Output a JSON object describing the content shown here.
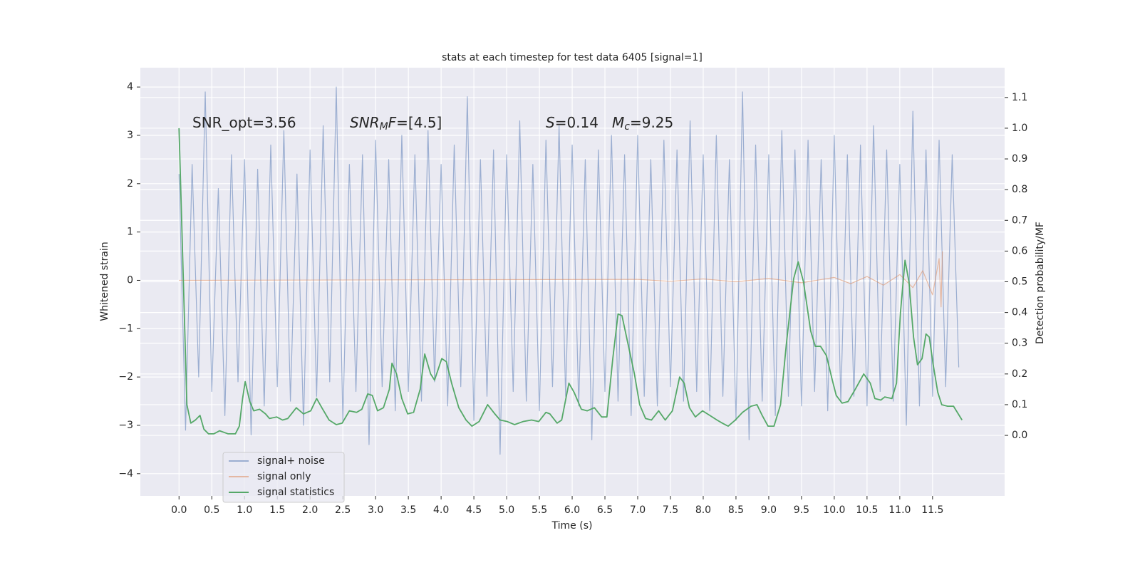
{
  "chart_data": {
    "type": "line",
    "title": "stats at each timestep for test data 6405 [signal=1]",
    "xlabel": "Time (s)",
    "ylabel": "Whitened strain",
    "y2label": "Detection probability/MF",
    "grid": true,
    "legend": "lower left",
    "xlim": [
      -0.59,
      12.6
    ],
    "ylim": [
      -4.46,
      4.4
    ],
    "y2lim": [
      -0.197,
      1.197
    ],
    "xticks": [
      {
        "value": 0,
        "label": "0.0"
      },
      0.5,
      {
        "value": 1,
        "label": "1.0"
      },
      1.5,
      {
        "value": 2,
        "label": "2.0"
      },
      2.5,
      {
        "value": 3,
        "label": "3.0"
      },
      3.5,
      {
        "value": 4,
        "label": "4.0"
      },
      4.5,
      {
        "value": 5,
        "label": "5.0"
      },
      5.5,
      {
        "value": 6,
        "label": "6.0"
      },
      6.5,
      {
        "value": 7,
        "label": "7.0"
      },
      7.5,
      {
        "value": 8,
        "label": "8.0"
      },
      8.5,
      {
        "value": 9,
        "label": "9.0"
      },
      9.5,
      {
        "value": 10,
        "label": "10.0"
      },
      10.5,
      {
        "value": 11,
        "label": "11.0"
      },
      11.5
    ],
    "yticks": [
      {
        "value": -4,
        "label": "−4"
      },
      {
        "value": -3,
        "label": "−3"
      },
      {
        "value": -2,
        "label": "−2"
      },
      {
        "value": -1,
        "label": "−1"
      },
      0,
      1,
      2,
      3,
      4
    ],
    "y2ticks": [
      {
        "value": 0,
        "label": "0.0"
      },
      0.1,
      0.2,
      0.3,
      0.4,
      0.5,
      0.6,
      0.7,
      0.8,
      0.9,
      {
        "value": 1,
        "label": "1.0"
      },
      1.1
    ],
    "annotations": [
      [
        {
          "text": "SNR_opt=3.56",
          "style": "normal"
        }
      ],
      [
        {
          "text": "SNR",
          "style": "italic"
        },
        {
          "text": "M",
          "style": "italic-sub"
        },
        {
          "text": "F",
          "style": "italic"
        },
        {
          "text": "=[4.5]",
          "style": "normal"
        }
      ],
      [
        {
          "text": "S",
          "style": "italic"
        },
        {
          "text": "=0.14",
          "style": "normal"
        }
      ],
      [
        {
          "text": "M",
          "style": "italic"
        },
        {
          "text": "c",
          "style": "italic-sub"
        },
        {
          "text": "=9.25",
          "style": "normal"
        }
      ]
    ],
    "series": [
      {
        "name": "signal+ noise",
        "color": "#4c72b0",
        "opacity": 0.5,
        "axis": "y",
        "x": [
          0,
          0.1,
          0.2,
          0.3,
          0.4,
          0.5,
          0.6,
          0.7,
          0.8,
          0.9,
          1,
          1.1,
          1.2,
          1.3,
          1.4,
          1.5,
          1.6,
          1.7,
          1.8,
          1.9,
          2,
          2.1,
          2.2,
          2.3,
          2.4,
          2.5,
          2.6,
          2.7,
          2.8,
          2.9,
          3,
          3.1,
          3.2,
          3.3,
          3.4,
          3.5,
          3.6,
          3.7,
          3.8,
          3.9,
          4,
          4.1,
          4.2,
          4.3,
          4.4,
          4.5,
          4.6,
          4.7,
          4.8,
          4.9,
          5,
          5.1,
          5.2,
          5.3,
          5.4,
          5.5,
          5.6,
          5.7,
          5.8,
          5.9,
          6,
          6.1,
          6.2,
          6.3,
          6.4,
          6.5,
          6.6,
          6.7,
          6.8,
          6.9,
          7,
          7.1,
          7.2,
          7.3,
          7.4,
          7.5,
          7.6,
          7.7,
          7.8,
          7.9,
          8,
          8.1,
          8.2,
          8.3,
          8.4,
          8.5,
          8.6,
          8.7,
          8.8,
          8.9,
          9,
          9.1,
          9.2,
          9.3,
          9.4,
          9.5,
          9.6,
          9.7,
          9.8,
          9.9,
          10,
          10.1,
          10.2,
          10.3,
          10.4,
          10.5,
          10.6,
          10.7,
          10.8,
          10.9,
          11,
          11.1,
          11.2,
          11.3,
          11.4,
          11.5,
          11.6,
          11.7,
          11.8,
          11.9
        ],
        "values": [
          2.2,
          -3.1,
          2.4,
          -2.0,
          3.9,
          -2.3,
          1.9,
          -2.8,
          2.6,
          -2.1,
          2.5,
          -3.2,
          2.3,
          -2.6,
          2.8,
          -2.2,
          3.1,
          -2.5,
          2.2,
          -3.0,
          2.7,
          -2.4,
          3.2,
          -2.1,
          4.0,
          -2.9,
          2.4,
          -2.3,
          2.6,
          -3.4,
          2.9,
          -2.2,
          2.5,
          -2.7,
          3.0,
          -2.3,
          2.6,
          -2.5,
          3.1,
          -2.1,
          2.4,
          -2.6,
          2.8,
          -2.2,
          3.8,
          -2.9,
          2.5,
          -2.4,
          2.7,
          -3.6,
          2.6,
          -2.3,
          3.3,
          -2.5,
          2.4,
          -2.7,
          2.9,
          -2.2,
          3.2,
          -2.4,
          2.8,
          -2.6,
          2.5,
          -3.3,
          2.7,
          -2.3,
          3.0,
          -2.5,
          2.6,
          -2.8,
          3.0,
          -2.4,
          2.5,
          -2.6,
          2.9,
          -2.2,
          2.7,
          -2.5,
          3.3,
          -2.3,
          2.6,
          -2.7,
          3.0,
          -2.4,
          2.5,
          -2.9,
          3.9,
          -3.3,
          2.8,
          -2.5,
          2.6,
          -2.8,
          3.1,
          -2.4,
          2.7,
          -2.6,
          2.9,
          -2.3,
          2.5,
          -2.7,
          3.0,
          -2.5,
          2.6,
          -2.4,
          2.8,
          -2.6,
          3.2,
          -2.3,
          2.7,
          -2.5,
          2.4,
          -3.0,
          3.5,
          -2.6,
          2.7,
          -2.4,
          2.9,
          -2.2,
          2.6,
          -1.8
        ]
      },
      {
        "name": "signal only",
        "color": "#dd8452",
        "opacity": 0.5,
        "axis": "y",
        "x": [
          0,
          7,
          7.5,
          8,
          8.5,
          9,
          9.5,
          10,
          10.25,
          10.5,
          10.75,
          11,
          11.2,
          11.35,
          11.5,
          11.6,
          11.63,
          11.65
        ],
        "values": [
          0,
          0.02,
          -0.02,
          0.03,
          -0.03,
          0.04,
          -0.05,
          0.06,
          -0.07,
          0.08,
          -0.1,
          0.12,
          -0.15,
          0.2,
          -0.3,
          0.45,
          -0.55,
          0.6
        ]
      },
      {
        "name": "signal statistics",
        "color": "#55a868",
        "opacity": 1,
        "axis": "y2",
        "x": [
          0,
          0.12,
          0.18,
          0.25,
          0.32,
          0.38,
          0.45,
          0.53,
          0.62,
          0.75,
          0.86,
          0.92,
          0.97,
          1.01,
          1.08,
          1.14,
          1.23,
          1.32,
          1.38,
          1.49,
          1.58,
          1.66,
          1.79,
          1.9,
          2.01,
          2.1,
          2.18,
          2.29,
          2.4,
          2.49,
          2.6,
          2.71,
          2.79,
          2.88,
          2.95,
          3.03,
          3.12,
          3.21,
          3.25,
          3.32,
          3.4,
          3.49,
          3.58,
          3.68,
          3.75,
          3.84,
          3.9,
          4.01,
          4.08,
          4.16,
          4.27,
          4.38,
          4.47,
          4.58,
          4.71,
          4.82,
          4.9,
          5.01,
          5.12,
          5.25,
          5.38,
          5.49,
          5.6,
          5.66,
          5.77,
          5.84,
          5.95,
          6.03,
          6.14,
          6.23,
          6.34,
          6.45,
          6.53,
          6.62,
          6.7,
          6.76,
          6.86,
          6.95,
          7.03,
          7.12,
          7.21,
          7.32,
          7.42,
          7.53,
          7.64,
          7.71,
          7.79,
          7.88,
          7.99,
          8.1,
          8.21,
          8.29,
          8.38,
          8.49,
          8.6,
          8.73,
          8.82,
          8.9,
          8.99,
          9.08,
          9.18,
          9.27,
          9.38,
          9.45,
          9.53,
          9.64,
          9.71,
          9.79,
          9.88,
          9.97,
          10.03,
          10.12,
          10.21,
          10.32,
          10.45,
          10.55,
          10.62,
          10.71,
          10.77,
          10.88,
          10.95,
          11.01,
          11.08,
          11.14,
          11.21,
          11.27,
          11.34,
          11.4,
          11.45,
          11.51,
          11.58,
          11.64,
          11.73,
          11.82,
          11.95
        ],
        "values": [
          1.0,
          0.1,
          0.04,
          0.05,
          0.065,
          0.02,
          0.005,
          0.005,
          0.015,
          0.005,
          0.005,
          0.03,
          0.12,
          0.175,
          0.11,
          0.08,
          0.085,
          0.07,
          0.055,
          0.06,
          0.05,
          0.055,
          0.09,
          0.07,
          0.08,
          0.12,
          0.09,
          0.05,
          0.035,
          0.04,
          0.08,
          0.075,
          0.085,
          0.135,
          0.13,
          0.08,
          0.09,
          0.15,
          0.235,
          0.2,
          0.12,
          0.07,
          0.075,
          0.15,
          0.265,
          0.2,
          0.18,
          0.25,
          0.24,
          0.17,
          0.09,
          0.05,
          0.03,
          0.045,
          0.1,
          0.07,
          0.05,
          0.045,
          0.035,
          0.045,
          0.05,
          0.045,
          0.075,
          0.07,
          0.04,
          0.05,
          0.17,
          0.14,
          0.085,
          0.08,
          0.09,
          0.06,
          0.06,
          0.25,
          0.395,
          0.39,
          0.29,
          0.2,
          0.1,
          0.055,
          0.05,
          0.08,
          0.05,
          0.08,
          0.19,
          0.17,
          0.09,
          0.06,
          0.08,
          0.065,
          0.05,
          0.04,
          0.03,
          0.05,
          0.075,
          0.095,
          0.1,
          0.065,
          0.03,
          0.03,
          0.1,
          0.3,
          0.51,
          0.565,
          0.5,
          0.34,
          0.29,
          0.29,
          0.26,
          0.18,
          0.13,
          0.105,
          0.11,
          0.15,
          0.2,
          0.17,
          0.12,
          0.115,
          0.125,
          0.12,
          0.17,
          0.4,
          0.57,
          0.5,
          0.32,
          0.23,
          0.25,
          0.33,
          0.32,
          0.23,
          0.14,
          0.1,
          0.095,
          0.095,
          0.05
        ]
      }
    ]
  }
}
